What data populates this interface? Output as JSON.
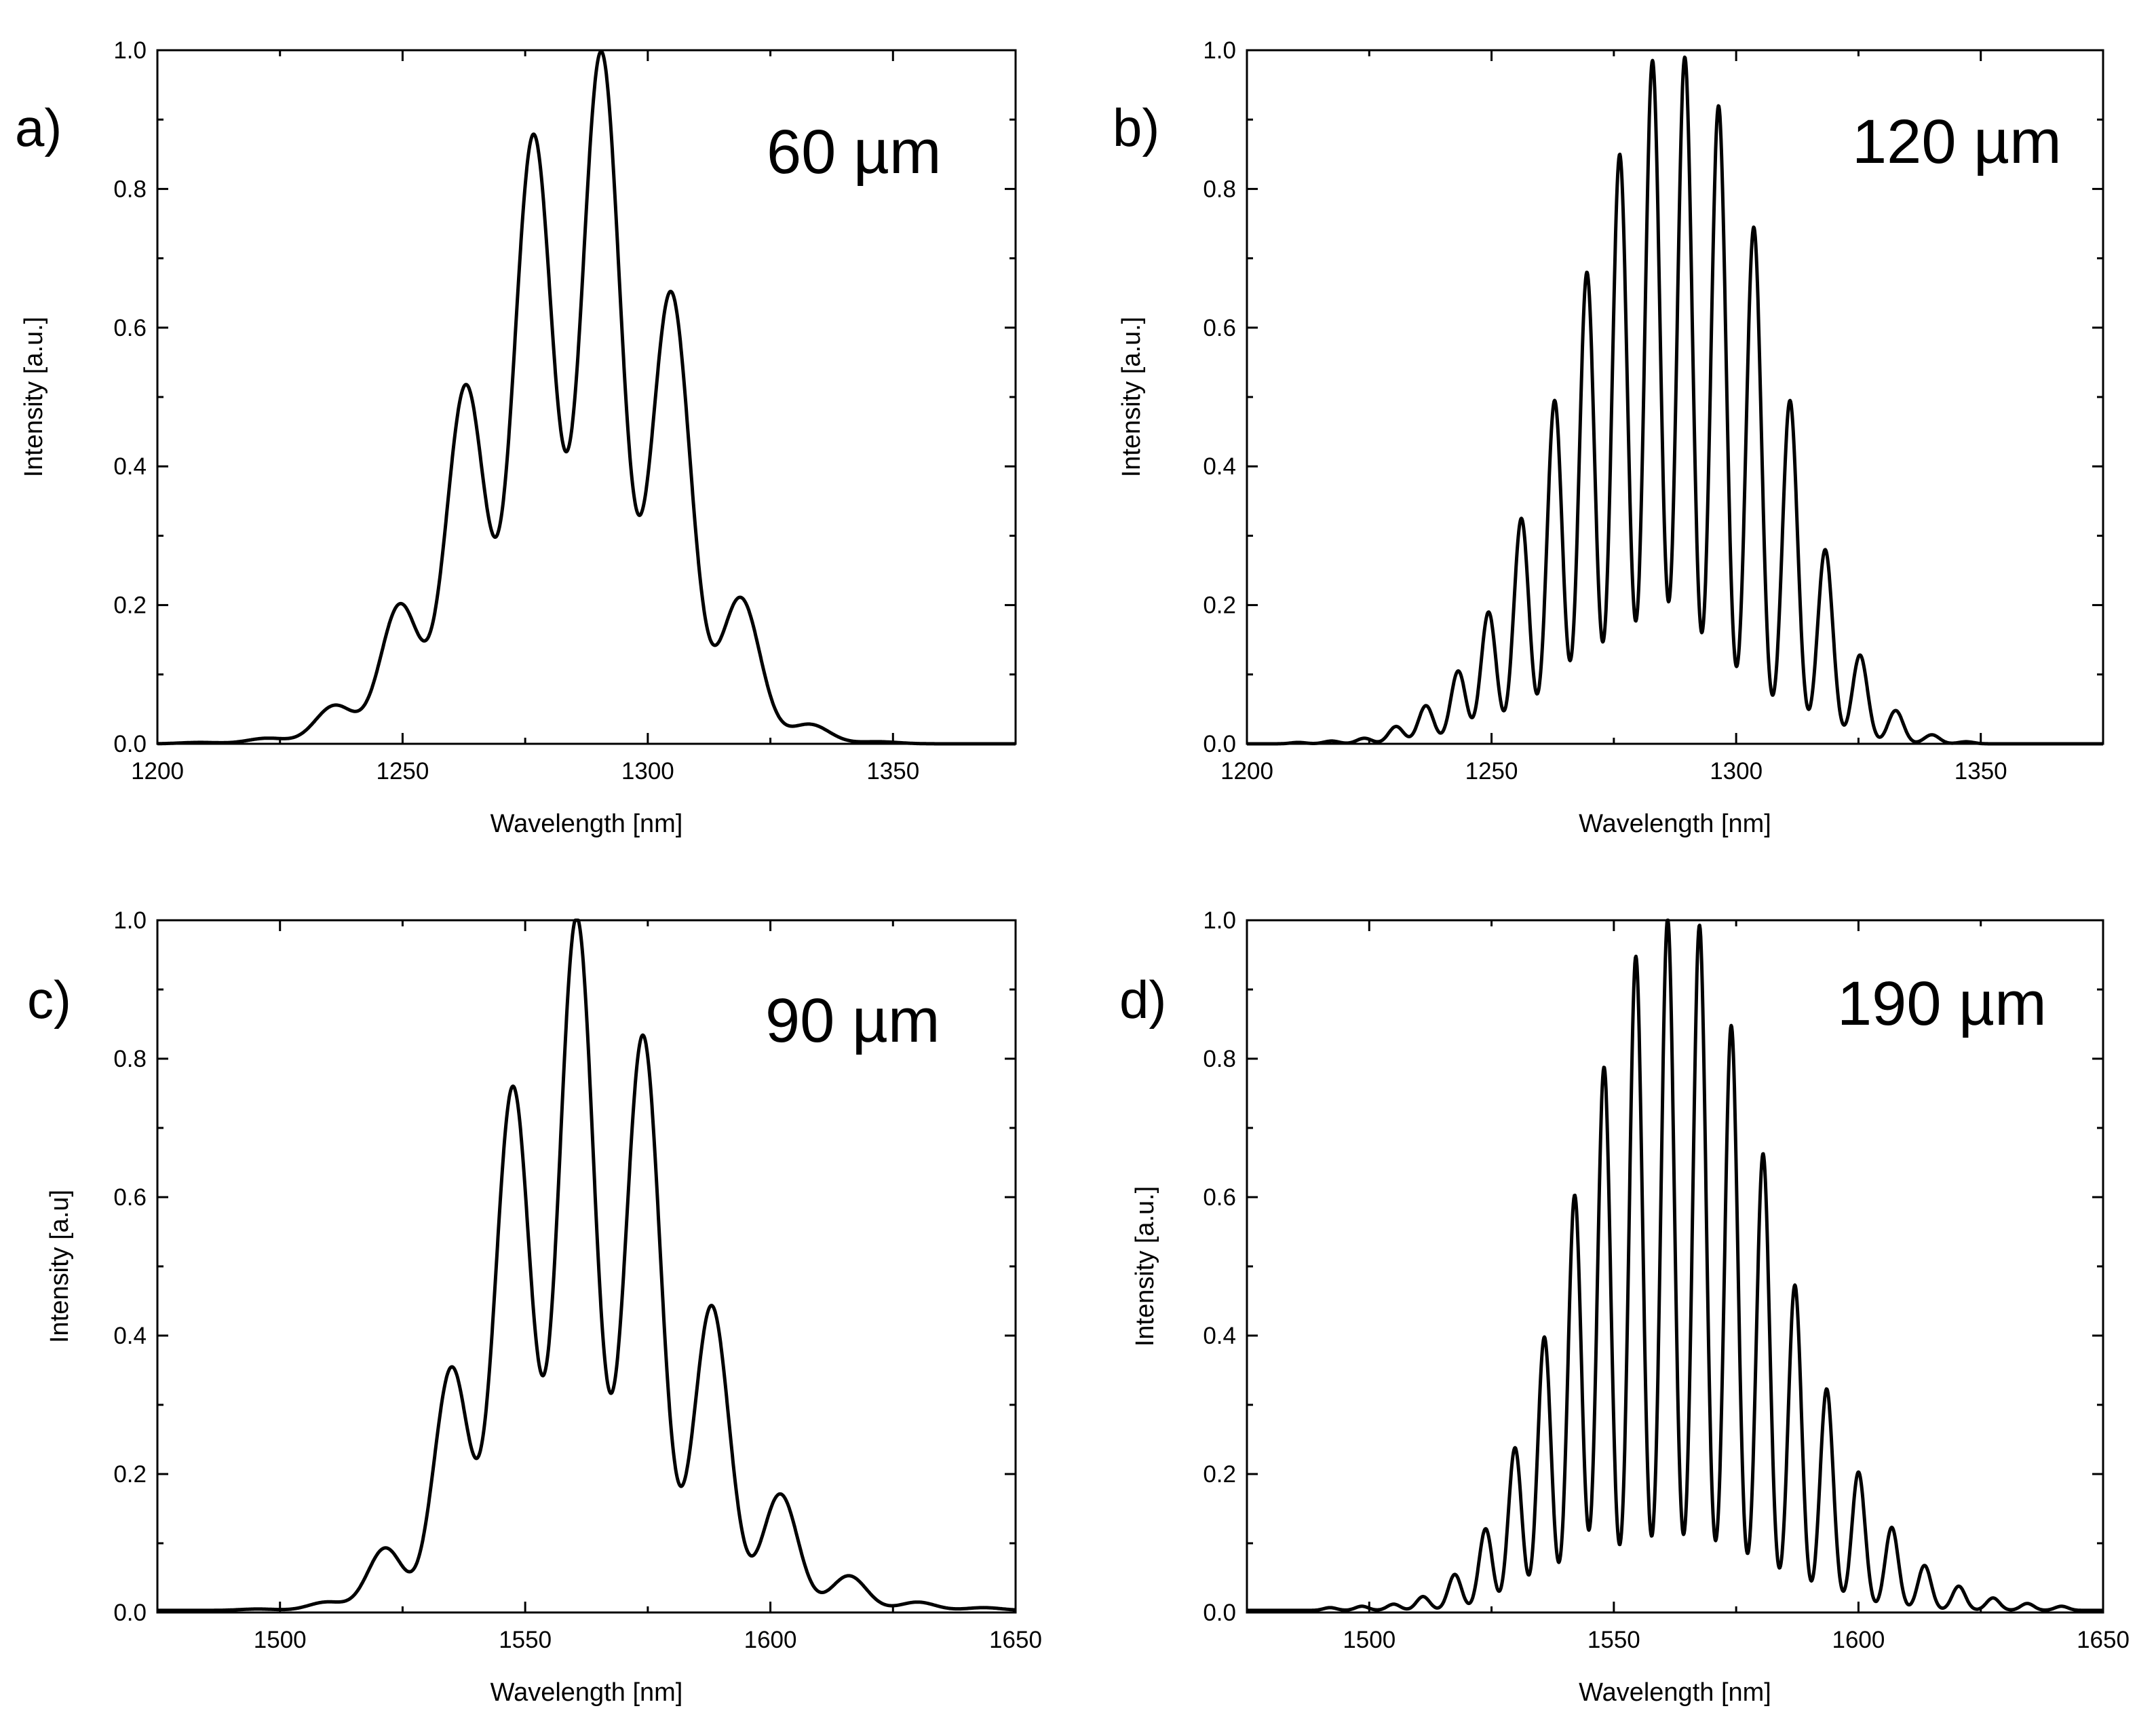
{
  "colors": {
    "line": "#000000",
    "background": "#ffffff"
  },
  "chart_data": [
    {
      "panel": "a)",
      "thickness_label": "60 µm",
      "type": "line",
      "xlabel": "Wavelength [nm]",
      "ylabel": "Intensity [a.u.]",
      "xlim": [
        1200,
        1375
      ],
      "ylim": [
        0,
        1
      ],
      "xticks": [
        1200,
        1250,
        1300,
        1350
      ],
      "xtick_labels": [
        "1200",
        "1250",
        "1300",
        "1350"
      ],
      "yticks": [
        0,
        0.2,
        0.4,
        0.6,
        0.8,
        1.0
      ],
      "ytick_labels": [
        "0.0",
        "0.2",
        "0.4",
        "0.6",
        "0.8",
        "1.0"
      ],
      "fringe_spacing_nm": 13.8,
      "fringe_width_nm": 4.0,
      "baseline": 0.0,
      "peaks": [
        {
          "x": 1208.6,
          "y": 0.002
        },
        {
          "x": 1222.4,
          "y": 0.008
        },
        {
          "x": 1236.2,
          "y": 0.055
        },
        {
          "x": 1249.5,
          "y": 0.2
        },
        {
          "x": 1262.9,
          "y": 0.515
        },
        {
          "x": 1276.7,
          "y": 0.875
        },
        {
          "x": 1290.5,
          "y": 0.995
        },
        {
          "x": 1304.7,
          "y": 0.65
        },
        {
          "x": 1318.9,
          "y": 0.21
        },
        {
          "x": 1333.0,
          "y": 0.028
        },
        {
          "x": 1347.0,
          "y": 0.003
        }
      ]
    },
    {
      "panel": "b)",
      "thickness_label": "120 µm",
      "type": "line",
      "xlabel": "Wavelength [nm]",
      "ylabel": "Intensity [a.u.]",
      "xlim": [
        1200,
        1375
      ],
      "ylim": [
        0,
        1
      ],
      "xticks": [
        1200,
        1250,
        1300,
        1350
      ],
      "xtick_labels": [
        "1200",
        "1250",
        "1300",
        "1350"
      ],
      "yticks": [
        0,
        0.2,
        0.4,
        0.6,
        0.8,
        1.0
      ],
      "ytick_labels": [
        "0.0",
        "0.2",
        "0.4",
        "0.6",
        "0.8",
        "1.0"
      ],
      "fringe_spacing_nm": 6.9,
      "fringe_width_nm": 1.55,
      "baseline": 0.0,
      "peaks": [
        {
          "x": 1210.5,
          "y": 0.002
        },
        {
          "x": 1217.3,
          "y": 0.004
        },
        {
          "x": 1224.0,
          "y": 0.008
        },
        {
          "x": 1230.5,
          "y": 0.025
        },
        {
          "x": 1236.6,
          "y": 0.055
        },
        {
          "x": 1243.2,
          "y": 0.105
        },
        {
          "x": 1249.4,
          "y": 0.19
        },
        {
          "x": 1256.1,
          "y": 0.325
        },
        {
          "x": 1262.9,
          "y": 0.495
        },
        {
          "x": 1269.5,
          "y": 0.68
        },
        {
          "x": 1276.2,
          "y": 0.85
        },
        {
          "x": 1282.9,
          "y": 0.985
        },
        {
          "x": 1289.5,
          "y": 0.99
        },
        {
          "x": 1296.4,
          "y": 0.92
        },
        {
          "x": 1303.6,
          "y": 0.745
        },
        {
          "x": 1311.0,
          "y": 0.495
        },
        {
          "x": 1318.2,
          "y": 0.28
        },
        {
          "x": 1325.3,
          "y": 0.128
        },
        {
          "x": 1332.6,
          "y": 0.048
        },
        {
          "x": 1340.0,
          "y": 0.013
        },
        {
          "x": 1347.0,
          "y": 0.003
        }
      ]
    },
    {
      "panel": "c)",
      "thickness_label": "90 µm",
      "type": "line",
      "xlabel": "Wavelength [nm]",
      "ylabel": "Intensity [a.u]",
      "xlim": [
        1475,
        1650
      ],
      "ylim": [
        0,
        1
      ],
      "xticks": [
        1500,
        1550,
        1600,
        1650
      ],
      "xtick_labels": [
        "1500",
        "1550",
        "1600",
        "1650"
      ],
      "yticks": [
        0,
        0.2,
        0.4,
        0.6,
        0.8,
        1.0
      ],
      "ytick_labels": [
        "0.0",
        "0.2",
        "0.4",
        "0.6",
        "0.8",
        "1.0"
      ],
      "fringe_spacing_nm": 13.4,
      "fringe_width_nm": 3.6,
      "baseline": 0.003,
      "peaks": [
        {
          "x": 1495.5,
          "y": 0.002
        },
        {
          "x": 1509.5,
          "y": 0.012
        },
        {
          "x": 1521.5,
          "y": 0.09
        },
        {
          "x": 1535.0,
          "y": 0.35
        },
        {
          "x": 1547.5,
          "y": 0.755
        },
        {
          "x": 1560.5,
          "y": 1.0
        },
        {
          "x": 1574.0,
          "y": 0.83
        },
        {
          "x": 1588.0,
          "y": 0.44
        },
        {
          "x": 1602.0,
          "y": 0.168
        },
        {
          "x": 1616.0,
          "y": 0.05
        },
        {
          "x": 1630.0,
          "y": 0.012
        },
        {
          "x": 1643.5,
          "y": 0.004
        }
      ]
    },
    {
      "panel": "d)",
      "thickness_label": "190 µm",
      "type": "line",
      "xlabel": "Wavelength [nm]",
      "ylabel": "Intensity [a.u.]",
      "xlim": [
        1475,
        1650
      ],
      "ylim": [
        0,
        1
      ],
      "xticks": [
        1500,
        1550,
        1600,
        1650
      ],
      "xtick_labels": [
        "1500",
        "1550",
        "1600",
        "1650"
      ],
      "yticks": [
        0,
        0.2,
        0.4,
        0.6,
        0.8,
        1.0
      ],
      "ytick_labels": [
        "0.0",
        "0.2",
        "0.4",
        "0.6",
        "0.8",
        "1.0"
      ],
      "fringe_spacing_nm": 6.3,
      "fringe_width_nm": 1.35,
      "baseline": 0.003,
      "peaks": [
        {
          "x": 1492.0,
          "y": 0.004
        },
        {
          "x": 1498.5,
          "y": 0.006
        },
        {
          "x": 1505.0,
          "y": 0.009
        },
        {
          "x": 1511.0,
          "y": 0.02
        },
        {
          "x": 1517.5,
          "y": 0.052
        },
        {
          "x": 1523.8,
          "y": 0.118
        },
        {
          "x": 1529.8,
          "y": 0.235
        },
        {
          "x": 1535.8,
          "y": 0.395
        },
        {
          "x": 1542.0,
          "y": 0.6
        },
        {
          "x": 1548.0,
          "y": 0.785
        },
        {
          "x": 1554.5,
          "y": 0.945
        },
        {
          "x": 1561.0,
          "y": 1.0
        },
        {
          "x": 1567.5,
          "y": 0.99
        },
        {
          "x": 1574.0,
          "y": 0.845
        },
        {
          "x": 1580.5,
          "y": 0.66
        },
        {
          "x": 1587.0,
          "y": 0.47
        },
        {
          "x": 1593.5,
          "y": 0.32
        },
        {
          "x": 1600.0,
          "y": 0.2
        },
        {
          "x": 1606.8,
          "y": 0.12
        },
        {
          "x": 1613.5,
          "y": 0.065
        },
        {
          "x": 1620.5,
          "y": 0.035
        },
        {
          "x": 1627.5,
          "y": 0.018
        },
        {
          "x": 1634.5,
          "y": 0.01
        },
        {
          "x": 1641.5,
          "y": 0.006
        }
      ]
    }
  ]
}
